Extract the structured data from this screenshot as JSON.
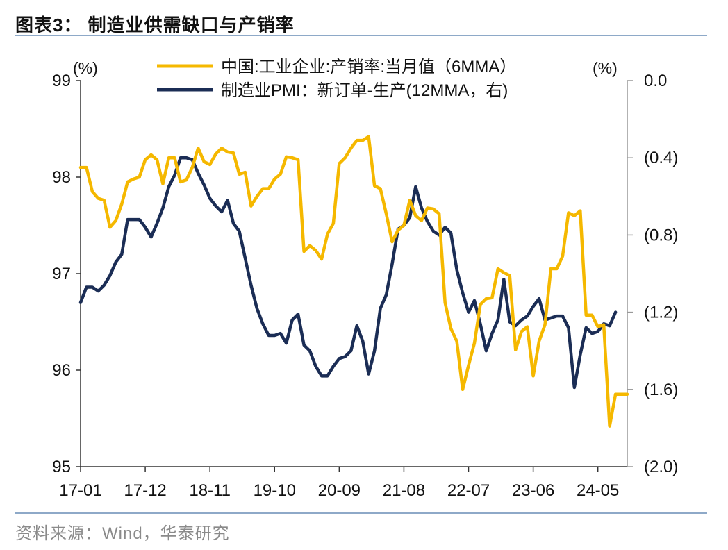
{
  "header": {
    "title": "图表3：  制造业供需缺口与产销率"
  },
  "footer": {
    "source": "资料来源：Wind，华泰研究"
  },
  "chart_data": {
    "type": "line",
    "left_axis": {
      "unit": "(%)",
      "range": [
        95,
        99
      ],
      "ticks": [
        "95",
        "96",
        "97",
        "98",
        "99"
      ]
    },
    "right_axis": {
      "unit": "(%)",
      "range": [
        -2.0,
        0.0
      ],
      "ticks": [
        "0.0",
        "(0.4)",
        "(0.8)",
        "(1.2)",
        "(1.6)",
        "(2.0)"
      ]
    },
    "x_tick_labels": [
      "17-01",
      "17-12",
      "18-11",
      "19-10",
      "20-09",
      "21-08",
      "22-07",
      "23-06",
      "24-05"
    ],
    "series": [
      {
        "name": "中国:工业企业:产销率:当月值（6MMA）",
        "color": "#f5b800",
        "axis": "left",
        "values": [
          98.1,
          98.1,
          97.85,
          97.78,
          97.76,
          97.48,
          97.55,
          97.72,
          97.95,
          97.98,
          98.0,
          98.18,
          98.23,
          98.18,
          97.93,
          98.2,
          98.2,
          97.95,
          97.97,
          98.1,
          98.3,
          98.16,
          98.13,
          98.24,
          98.3,
          98.26,
          98.25,
          98.03,
          98.05,
          97.7,
          97.8,
          97.88,
          97.88,
          97.98,
          98.03,
          98.21,
          98.2,
          98.18,
          97.23,
          97.29,
          97.24,
          97.15,
          97.41,
          97.52,
          98.14,
          98.2,
          98.3,
          98.38,
          98.38,
          98.42,
          97.91,
          97.88,
          97.62,
          97.33,
          97.45,
          97.5,
          97.76,
          97.6,
          97.55,
          97.68,
          97.67,
          97.62,
          96.7,
          96.43,
          96.3,
          95.8,
          96.05,
          96.28,
          96.68,
          96.74,
          96.75,
          97.05,
          97.01,
          96.98,
          96.21,
          96.4,
          96.45,
          95.94,
          96.3,
          96.47,
          97.05,
          97.05,
          97.18,
          97.63,
          97.6,
          97.65,
          96.57,
          96.57,
          96.45,
          96.47,
          95.42,
          95.75,
          95.75,
          95.75
        ]
      },
      {
        "name": "制造业PMI：新订单-生产(12MMA，右)",
        "color": "#1b2d55",
        "axis": "right",
        "values": [
          -1.15,
          -1.07,
          -1.07,
          -1.09,
          -1.06,
          -1.01,
          -0.94,
          -0.9,
          -0.72,
          -0.72,
          -0.72,
          -0.76,
          -0.81,
          -0.74,
          -0.66,
          -0.55,
          -0.49,
          -0.4,
          -0.4,
          -0.41,
          -0.48,
          -0.54,
          -0.61,
          -0.65,
          -0.68,
          -0.62,
          -0.74,
          -0.78,
          -0.92,
          -1.06,
          -1.18,
          -1.26,
          -1.32,
          -1.32,
          -1.31,
          -1.36,
          -1.24,
          -1.21,
          -1.37,
          -1.4,
          -1.48,
          -1.53,
          -1.53,
          -1.48,
          -1.44,
          -1.43,
          -1.4,
          -1.27,
          -1.35,
          -1.52,
          -1.4,
          -1.18,
          -1.11,
          -0.95,
          -0.77,
          -0.75,
          -0.71,
          -0.55,
          -0.66,
          -0.73,
          -0.78,
          -0.8,
          -0.76,
          -0.79,
          -0.98,
          -1.1,
          -1.2,
          -1.14,
          -1.26,
          -1.4,
          -1.31,
          -1.24,
          -1.03,
          -1.25,
          -1.27,
          -1.24,
          -1.22,
          -1.17,
          -1.13,
          -1.24,
          -1.23,
          -1.22,
          -1.22,
          -1.28,
          -1.59,
          -1.42,
          -1.28,
          -1.31,
          -1.3,
          -1.26,
          -1.27,
          -1.2
        ]
      }
    ],
    "grid": false,
    "legend": "top-center"
  }
}
